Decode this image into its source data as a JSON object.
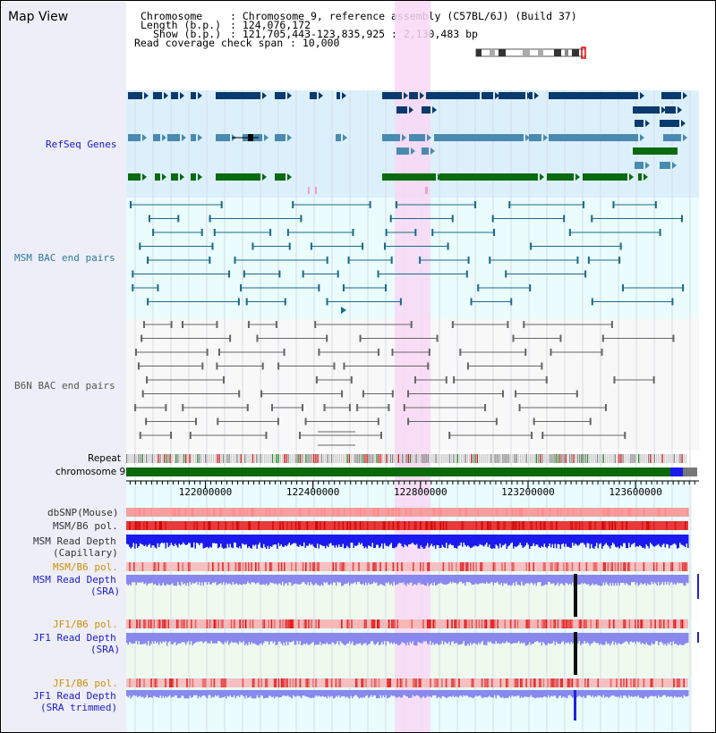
{
  "page": {
    "title": "Map View"
  },
  "header": {
    "chromosome_key": "Chromosome",
    "chromosome_value": ": Chromosome 9, reference assembly (C57BL/6J) (Build 37)",
    "length_key": "Length (b.p.)",
    "length_value": ": 124,076,172",
    "show_key": "Show (b.p.)",
    "show_value": ": 121,705,443-123,835,925 : 2,130,483 bp",
    "coverage_key": "Read coverage check span",
    "coverage_value": ": 10,000"
  },
  "tracks": {
    "refseq": "RefSeq Genes",
    "msm_bac": "MSM BAC end pairs",
    "b6n_bac": "B6N BAC end pairs",
    "repeat": "Repeat",
    "chromosome": "chromosome 9",
    "dbsnp": "dbSNP(Mouse)",
    "msm_b6_pol_1": "MSM/B6 pol.",
    "msm_read_depth_cap_1": "MSM Read Depth",
    "msm_read_depth_cap_2": "(Capillary)",
    "msm_b6_pol_2": "MSM/B6 pol.",
    "msm_read_depth_sra_1": "MSM Read Depth",
    "msm_read_depth_sra_2": "(SRA)",
    "jf1_b6_pol_1": "JF1/B6 pol.",
    "jf1_read_depth_sra_1": "JF1 Read Depth",
    "jf1_read_depth_sra_2": "(SRA)",
    "jf1_b6_pol_2": "JF1/B6 pol.",
    "jf1_read_depth_trim_1": "JF1 Read Depth",
    "jf1_read_depth_trim_2": "(SRA trimmed)"
  },
  "axis": {
    "ticks": [
      {
        "label": "122000000",
        "value": 122000000
      },
      {
        "label": "122400000",
        "value": 122400000
      },
      {
        "label": "122800000",
        "value": 122800000
      },
      {
        "label": "123200000",
        "value": 123200000
      },
      {
        "label": "123600000",
        "value": 123600000
      }
    ]
  },
  "colors": {
    "refseq_bg": "#dcf0fc",
    "bac_bg": "#eafcfc",
    "b6n_bg": "#f8f8f8",
    "highlight": "#f8d8f4",
    "gene_dark": "#0a3a6e",
    "gene_mid": "#4a8ab0",
    "gene_green": "#0a6a10",
    "msm_pair": "#1a6a8a",
    "b6n_pair": "#666666",
    "chrom_bar": "#0a6a0a",
    "depth_blue": "#1a1aee",
    "depth_light": "#8888ee",
    "snp_pink": "#f4a0a0",
    "pol_red": "#e83a3a",
    "label_blue": "#1a1acc",
    "label_orange": "#d09000",
    "label_teal": "#2a7a9a"
  }
}
